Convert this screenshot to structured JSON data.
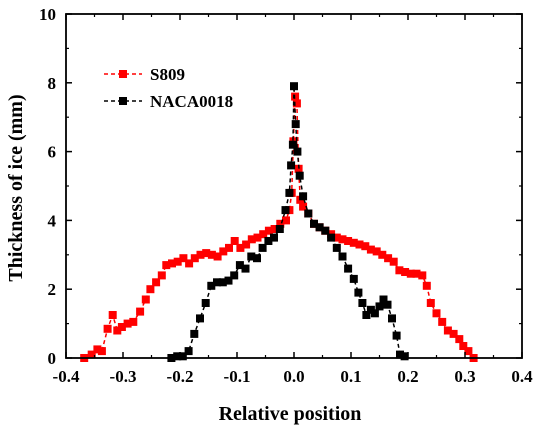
{
  "chart_data": {
    "type": "line",
    "title": "",
    "xlabel": "Relative position",
    "ylabel": "Thickness of ice (mm)",
    "xlim": [
      -0.4,
      0.4
    ],
    "ylim": [
      0,
      10
    ],
    "xticks": [
      -0.4,
      -0.3,
      -0.2,
      -0.1,
      0.0,
      0.1,
      0.2,
      0.3,
      0.4
    ],
    "xtick_labels": [
      "-0.4",
      "-0.3",
      "-0.2",
      "-0.1",
      "0.0",
      "0.1",
      "0.2",
      "0.3",
      "0.4"
    ],
    "yticks": [
      0,
      2,
      4,
      6,
      8,
      10
    ],
    "ytick_labels": [
      "0",
      "2",
      "4",
      "6",
      "8",
      "10"
    ],
    "grid": false,
    "legend_position": "upper-left",
    "series": [
      {
        "name": "S809",
        "color": "#ff0000",
        "marker": "square",
        "line_style": "dashed",
        "points": [
          [
            -0.368,
            0.0
          ],
          [
            -0.355,
            0.1
          ],
          [
            -0.345,
            0.25
          ],
          [
            -0.337,
            0.2
          ],
          [
            -0.327,
            0.85
          ],
          [
            -0.318,
            1.25
          ],
          [
            -0.31,
            0.8
          ],
          [
            -0.302,
            0.9
          ],
          [
            -0.292,
            1.0
          ],
          [
            -0.282,
            1.05
          ],
          [
            -0.27,
            1.35
          ],
          [
            -0.26,
            1.7
          ],
          [
            -0.252,
            2.0
          ],
          [
            -0.242,
            2.2
          ],
          [
            -0.232,
            2.4
          ],
          [
            -0.224,
            2.7
          ],
          [
            -0.214,
            2.75
          ],
          [
            -0.204,
            2.8
          ],
          [
            -0.194,
            2.9
          ],
          [
            -0.184,
            2.75
          ],
          [
            -0.174,
            2.9
          ],
          [
            -0.164,
            3.0
          ],
          [
            -0.154,
            3.05
          ],
          [
            -0.144,
            3.0
          ],
          [
            -0.134,
            2.95
          ],
          [
            -0.124,
            3.1
          ],
          [
            -0.114,
            3.2
          ],
          [
            -0.104,
            3.4
          ],
          [
            -0.094,
            3.2
          ],
          [
            -0.084,
            3.3
          ],
          [
            -0.074,
            3.45
          ],
          [
            -0.064,
            3.5
          ],
          [
            -0.054,
            3.6
          ],
          [
            -0.044,
            3.7
          ],
          [
            -0.034,
            3.75
          ],
          [
            -0.024,
            3.9
          ],
          [
            -0.014,
            4.0
          ],
          [
            -0.008,
            4.3
          ],
          [
            -0.004,
            4.8
          ],
          [
            -0.001,
            6.3
          ],
          [
            0.002,
            7.6
          ],
          [
            0.005,
            7.4
          ],
          [
            0.008,
            5.5
          ],
          [
            0.011,
            4.6
          ],
          [
            0.016,
            4.4
          ],
          [
            0.025,
            4.2
          ],
          [
            0.035,
            3.9
          ],
          [
            0.045,
            3.8
          ],
          [
            0.055,
            3.7
          ],
          [
            0.065,
            3.6
          ],
          [
            0.075,
            3.5
          ],
          [
            0.085,
            3.45
          ],
          [
            0.095,
            3.4
          ],
          [
            0.105,
            3.35
          ],
          [
            0.115,
            3.3
          ],
          [
            0.125,
            3.25
          ],
          [
            0.135,
            3.15
          ],
          [
            0.145,
            3.1
          ],
          [
            0.155,
            3.0
          ],
          [
            0.165,
            2.9
          ],
          [
            0.175,
            2.8
          ],
          [
            0.185,
            2.55
          ],
          [
            0.195,
            2.5
          ],
          [
            0.205,
            2.45
          ],
          [
            0.215,
            2.45
          ],
          [
            0.225,
            2.4
          ],
          [
            0.233,
            2.1
          ],
          [
            0.24,
            1.6
          ],
          [
            0.25,
            1.3
          ],
          [
            0.26,
            1.05
          ],
          [
            0.27,
            0.8
          ],
          [
            0.28,
            0.7
          ],
          [
            0.29,
            0.55
          ],
          [
            0.297,
            0.35
          ],
          [
            0.306,
            0.2
          ],
          [
            0.315,
            0.0
          ]
        ]
      },
      {
        "name": "NACA0018",
        "color": "#000000",
        "marker": "square",
        "line_style": "dashed",
        "points": [
          [
            -0.215,
            0.0
          ],
          [
            -0.205,
            0.05
          ],
          [
            -0.195,
            0.05
          ],
          [
            -0.185,
            0.2
          ],
          [
            -0.175,
            0.7
          ],
          [
            -0.165,
            1.15
          ],
          [
            -0.155,
            1.6
          ],
          [
            -0.145,
            2.1
          ],
          [
            -0.135,
            2.2
          ],
          [
            -0.125,
            2.2
          ],
          [
            -0.115,
            2.25
          ],
          [
            -0.105,
            2.4
          ],
          [
            -0.095,
            2.7
          ],
          [
            -0.085,
            2.6
          ],
          [
            -0.075,
            2.95
          ],
          [
            -0.065,
            2.9
          ],
          [
            -0.055,
            3.2
          ],
          [
            -0.045,
            3.4
          ],
          [
            -0.035,
            3.5
          ],
          [
            -0.025,
            3.75
          ],
          [
            -0.015,
            4.3
          ],
          [
            -0.008,
            4.8
          ],
          [
            -0.005,
            5.6
          ],
          [
            -0.002,
            6.2
          ],
          [
            0.0,
            7.9
          ],
          [
            0.003,
            6.8
          ],
          [
            0.006,
            6.0
          ],
          [
            0.01,
            5.3
          ],
          [
            0.016,
            4.7
          ],
          [
            0.025,
            4.2
          ],
          [
            0.035,
            3.9
          ],
          [
            0.045,
            3.8
          ],
          [
            0.055,
            3.7
          ],
          [
            0.065,
            3.5
          ],
          [
            0.075,
            3.2
          ],
          [
            0.085,
            2.95
          ],
          [
            0.095,
            2.6
          ],
          [
            0.105,
            2.3
          ],
          [
            0.113,
            1.9
          ],
          [
            0.12,
            1.6
          ],
          [
            0.127,
            1.25
          ],
          [
            0.135,
            1.4
          ],
          [
            0.142,
            1.3
          ],
          [
            0.15,
            1.5
          ],
          [
            0.157,
            1.7
          ],
          [
            0.164,
            1.55
          ],
          [
            0.172,
            1.15
          ],
          [
            0.18,
            0.65
          ],
          [
            0.186,
            0.1
          ],
          [
            0.194,
            0.05
          ]
        ]
      }
    ]
  }
}
